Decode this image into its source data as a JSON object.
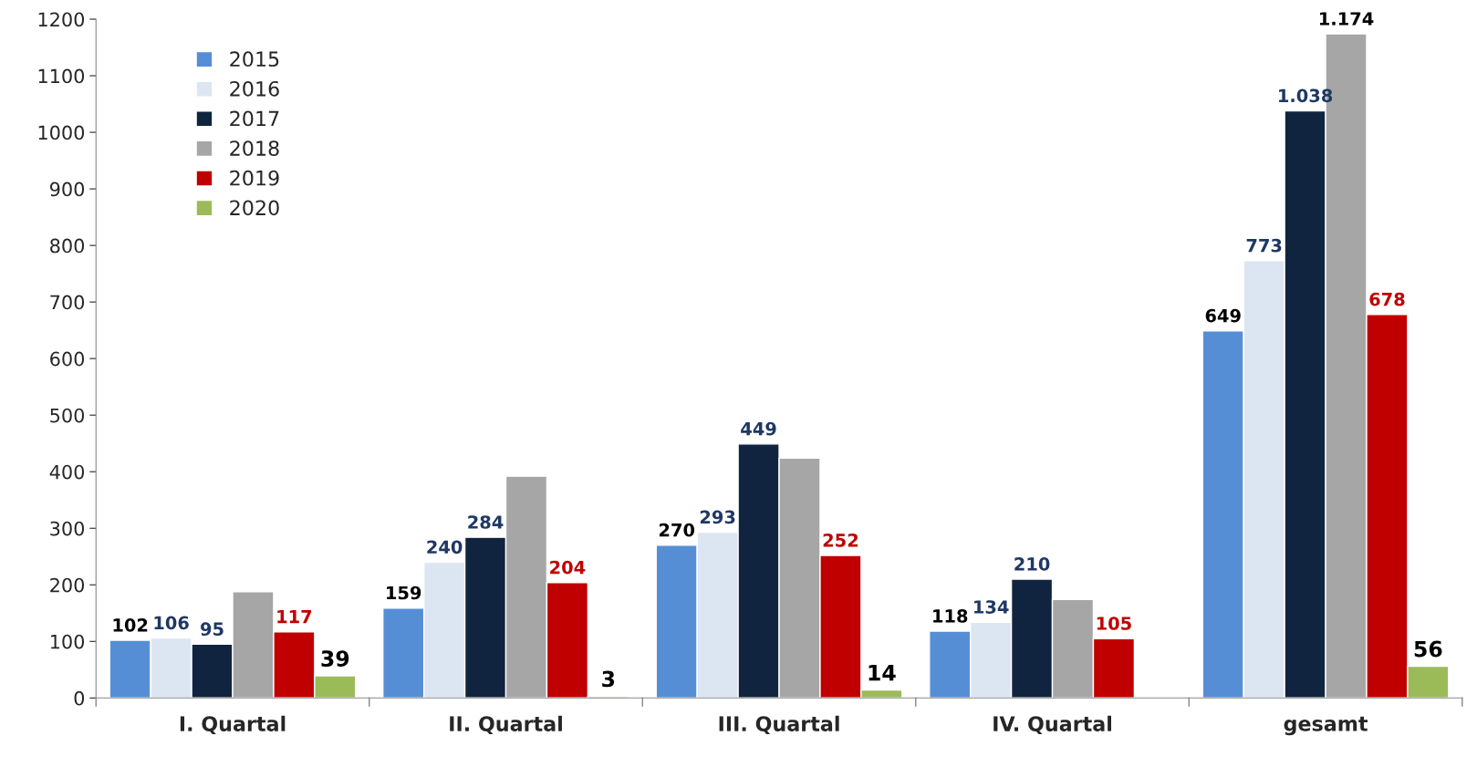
{
  "chart_data": {
    "type": "bar",
    "categories": [
      "I. Quartal",
      "II. Quartal",
      "III. Quartal",
      "IV. Quartal",
      "gesamt"
    ],
    "series": [
      {
        "name": "2015",
        "color": "#558ed5",
        "values": [
          102,
          159,
          270,
          118,
          649
        ],
        "value_labels": [
          "102",
          "159",
          "270",
          "118",
          "649"
        ]
      },
      {
        "name": "2016",
        "color": "#dce6f2",
        "values": [
          106,
          240,
          293,
          134,
          773
        ],
        "value_labels": [
          "106",
          "240",
          "293",
          "134",
          "773"
        ]
      },
      {
        "name": "2017",
        "color": "#10243f",
        "values": [
          95,
          284,
          449,
          210,
          1038
        ],
        "value_labels": [
          "95",
          "284",
          "449",
          "210",
          "1.038"
        ]
      },
      {
        "name": "2018",
        "color": "#a6a6a6",
        "values": [
          188,
          392,
          424,
          174,
          1174
        ],
        "value_labels": [
          null,
          null,
          null,
          null,
          "1.174"
        ]
      },
      {
        "name": "2019",
        "color": "#c00000",
        "values": [
          117,
          204,
          252,
          105,
          678
        ],
        "value_labels": [
          "117",
          "204",
          "252",
          "105",
          "678"
        ]
      },
      {
        "name": "2020",
        "color": "#9bbb59",
        "values": [
          39,
          3,
          14,
          null,
          56
        ],
        "value_labels": [
          "39",
          "3",
          "14",
          null,
          "56"
        ]
      }
    ],
    "ylim": [
      0,
      1200
    ],
    "yticks": [
      0,
      100,
      200,
      300,
      400,
      500,
      600,
      700,
      800,
      900,
      1000,
      1100,
      1200
    ],
    "grid": false,
    "legend": "top left"
  }
}
